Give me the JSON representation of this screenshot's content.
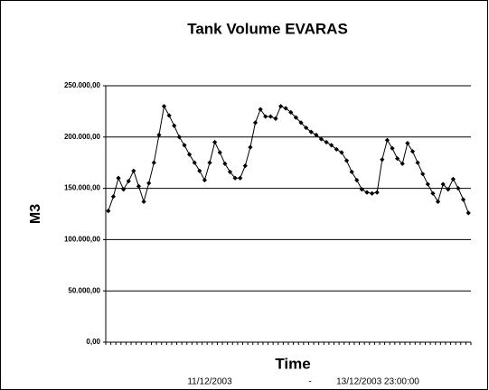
{
  "chart_data": {
    "type": "line",
    "title": "Tank Volume  EVARAS",
    "y_label": "M3",
    "x_label": "Time",
    "time_start": "11/12/2003",
    "time_separator": "-",
    "time_end": "13/12/2003 23:00:00",
    "categories": [
      null,
      null,
      null,
      null,
      null,
      null,
      null,
      null,
      null,
      null,
      null,
      null,
      null,
      null,
      null,
      null,
      null,
      null,
      null,
      null,
      null,
      null,
      null,
      null,
      null,
      null,
      null,
      null,
      null,
      null,
      null,
      null,
      null,
      null,
      null,
      null,
      null,
      null,
      null,
      null,
      null,
      null,
      null,
      null,
      null,
      null,
      null,
      null,
      null,
      null,
      null,
      null,
      null,
      null,
      null,
      null,
      null,
      null,
      null,
      null,
      null,
      null,
      null,
      null,
      null,
      null,
      null,
      null,
      null,
      null,
      null,
      null
    ],
    "values": [
      128000,
      142000,
      160000,
      149000,
      157000,
      167000,
      152000,
      137000,
      155000,
      175000,
      202000,
      230000,
      221000,
      211000,
      200000,
      192000,
      183000,
      175000,
      167000,
      158000,
      175000,
      195000,
      185000,
      174000,
      166000,
      160000,
      160000,
      172000,
      190000,
      214000,
      227000,
      220000,
      220000,
      218000,
      230000,
      228000,
      224000,
      219000,
      214000,
      209000,
      205000,
      202000,
      198000,
      195000,
      192000,
      188000,
      185000,
      177000,
      166000,
      158000,
      149000,
      146000,
      145000,
      146000,
      178000,
      197000,
      189000,
      179000,
      174000,
      194000,
      186000,
      175000,
      164000,
      154000,
      145000,
      137000,
      154000,
      149000,
      159000,
      150000,
      139000,
      126000
    ],
    "color": "#000000",
    "ylim": [
      0,
      250000
    ],
    "yticks": [
      {
        "value": 0,
        "label": "0,00"
      },
      {
        "value": 50000,
        "label": "50.000,00"
      },
      {
        "value": 100000,
        "label": "100.000,00"
      },
      {
        "value": 150000,
        "label": "150.000,00"
      },
      {
        "value": 200000,
        "label": "200.000,00"
      },
      {
        "value": 250000,
        "label": "250.000,00"
      }
    ],
    "grid": true
  }
}
